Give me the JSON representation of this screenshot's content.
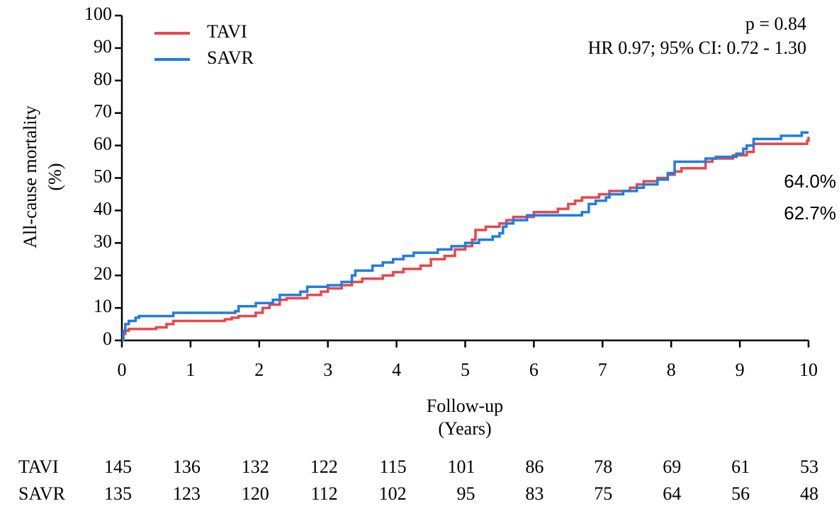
{
  "chart_data": {
    "type": "line",
    "step": true,
    "ylabel": [
      "All-cause mortality",
      "(%)"
    ],
    "xlabel": [
      "Follow-up",
      "(Years)"
    ],
    "annotations": [
      "p = 0.84",
      "HR 0.97; 95% CI: 0.72 - 1.30"
    ],
    "xlim": [
      0,
      10
    ],
    "ylim": [
      0,
      100
    ],
    "xticks": [
      0,
      1,
      2,
      3,
      4,
      5,
      6,
      7,
      8,
      9,
      10
    ],
    "yticks": [
      0,
      10,
      20,
      30,
      40,
      50,
      60,
      70,
      80,
      90,
      100
    ],
    "series": [
      {
        "name": "TAVI",
        "color": "#e8474c",
        "end_label": "62.7%",
        "end_label_color": "#e8202a",
        "x": [
          0,
          0.02,
          0.05,
          0.1,
          0.5,
          0.65,
          0.75,
          1.5,
          1.6,
          1.7,
          1.95,
          2.05,
          2.15,
          2.3,
          2.4,
          2.7,
          2.9,
          3.0,
          3.2,
          3.35,
          3.5,
          3.8,
          3.95,
          4.1,
          4.35,
          4.5,
          4.7,
          4.85,
          5.0,
          5.1,
          5.15,
          5.3,
          5.5,
          5.6,
          5.7,
          6.0,
          6.35,
          6.5,
          6.6,
          6.7,
          6.95,
          7.1,
          7.4,
          7.5,
          7.6,
          7.8,
          7.95,
          8.05,
          8.15,
          8.5,
          8.6,
          8.9,
          9.1,
          9.2,
          9.98,
          10
        ],
        "values": [
          0,
          2,
          3,
          3.5,
          4,
          5,
          6,
          6.5,
          7,
          7.5,
          8.5,
          10,
          11,
          12.5,
          13,
          14,
          15,
          16,
          17,
          18,
          19,
          20,
          21,
          22,
          23,
          25,
          26,
          28,
          29,
          31,
          34,
          35,
          36,
          37,
          38,
          39.5,
          40.5,
          42,
          43,
          44,
          45,
          46,
          47,
          48,
          49,
          50,
          51,
          52,
          53,
          55,
          56,
          57,
          58,
          60.5,
          61.5,
          62.7
        ]
      },
      {
        "name": "SAVR",
        "color": "#1f7de0",
        "end_label": "64.0%",
        "end_label_color": "#1a78c2",
        "x": [
          0,
          0.02,
          0.05,
          0.1,
          0.2,
          0.25,
          0.75,
          1.65,
          1.7,
          1.95,
          2.2,
          2.3,
          2.6,
          2.7,
          3.0,
          3.2,
          3.35,
          3.4,
          3.65,
          3.8,
          3.95,
          4.1,
          4.25,
          4.6,
          4.8,
          5.0,
          5.2,
          5.4,
          5.5,
          5.55,
          5.6,
          5.7,
          5.9,
          6.7,
          6.8,
          6.9,
          7.05,
          7.1,
          7.3,
          7.5,
          7.6,
          7.8,
          7.95,
          8.05,
          8.5,
          8.65,
          8.95,
          9.05,
          9.1,
          9.2,
          9.6,
          9.9,
          10
        ],
        "values": [
          0,
          3,
          5,
          6,
          7,
          7.5,
          8.5,
          9,
          10.5,
          11.5,
          12.5,
          14,
          15,
          16.5,
          17,
          18,
          20,
          21.5,
          23,
          24,
          25,
          26,
          27,
          28,
          29,
          30,
          31,
          32,
          33,
          35,
          36,
          37,
          38.5,
          39.5,
          42,
          43,
          44,
          45,
          46,
          47,
          48,
          49.5,
          51.5,
          55,
          56,
          56.5,
          57.5,
          59,
          60,
          62,
          63,
          64,
          64
        ]
      }
    ],
    "risk_table": [
      {
        "name": "TAVI",
        "values": [
          145,
          136,
          132,
          122,
          115,
          101,
          86,
          78,
          69,
          61,
          53
        ]
      },
      {
        "name": "SAVR",
        "values": [
          135,
          123,
          120,
          112,
          102,
          95,
          83,
          75,
          64,
          56,
          48
        ]
      }
    ]
  }
}
